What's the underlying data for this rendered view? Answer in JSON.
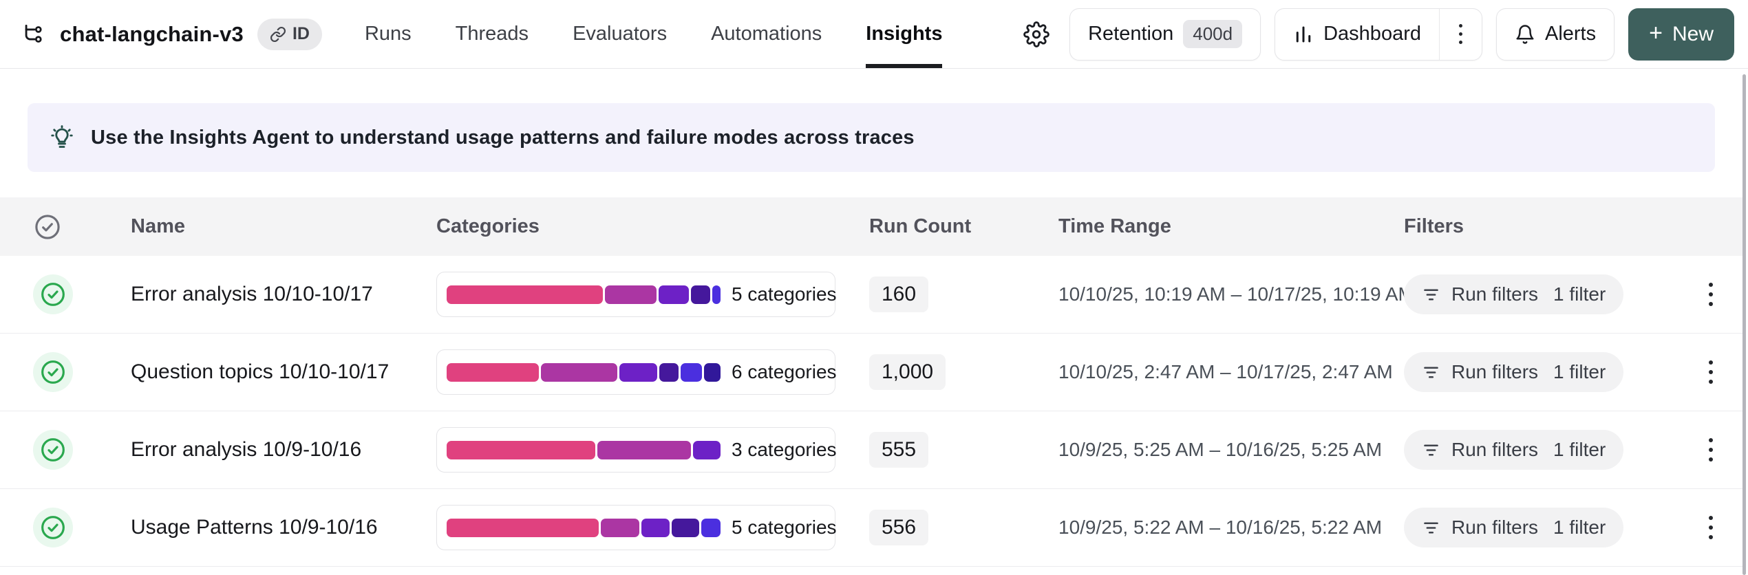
{
  "header": {
    "project_title": "chat-langchain-v3",
    "id_badge": "ID",
    "tabs": [
      {
        "label": "Runs",
        "active": false
      },
      {
        "label": "Threads",
        "active": false
      },
      {
        "label": "Evaluators",
        "active": false
      },
      {
        "label": "Automations",
        "active": false
      },
      {
        "label": "Insights",
        "active": true
      }
    ],
    "retention_label": "Retention",
    "retention_value": "400d",
    "dashboard_label": "Dashboard",
    "alerts_label": "Alerts",
    "new_plus": "+",
    "new_label": "New"
  },
  "banner": {
    "text": "Use the Insights Agent to understand usage patterns and failure modes across traces"
  },
  "table": {
    "columns": {
      "name": "Name",
      "categories": "Categories",
      "run_count": "Run Count",
      "time_range": "Time Range",
      "filters": "Filters"
    },
    "rows": [
      {
        "name": "Error analysis 10/10-10/17",
        "categories_label": "5 categories",
        "segments": [
          {
            "color": "#e0417f",
            "pct": 57
          },
          {
            "color": "#ab36a3",
            "pct": 19
          },
          {
            "color": "#6d21c6",
            "pct": 11
          },
          {
            "color": "#45189c",
            "pct": 7
          },
          {
            "color": "#4b2fdf",
            "pct": 3
          }
        ],
        "run_count": "160",
        "time_range": "10/10/25, 10:19 AM – 10/17/25, 10:19 AM",
        "filter_label": "Run filters",
        "filter_count": "1 filter"
      },
      {
        "name": "Question topics 10/10-10/17",
        "categories_label": "6 categories",
        "segments": [
          {
            "color": "#e0417f",
            "pct": 34
          },
          {
            "color": "#ab36a3",
            "pct": 28
          },
          {
            "color": "#6d21c6",
            "pct": 14
          },
          {
            "color": "#45189c",
            "pct": 7
          },
          {
            "color": "#4b2fdf",
            "pct": 8
          },
          {
            "color": "#31189a",
            "pct": 6
          }
        ],
        "run_count": "1,000",
        "time_range": "10/10/25, 2:47 AM – 10/17/25, 2:47 AM",
        "filter_label": "Run filters",
        "filter_count": "1 filter"
      },
      {
        "name": "Error analysis 10/9-10/16",
        "categories_label": "3 categories",
        "segments": [
          {
            "color": "#e0417f",
            "pct": 54
          },
          {
            "color": "#ab36a3",
            "pct": 34
          },
          {
            "color": "#6d21c6",
            "pct": 10
          }
        ],
        "run_count": "555",
        "time_range": "10/9/25, 5:25 AM – 10/16/25, 5:25 AM",
        "filter_label": "Run filters",
        "filter_count": "1 filter"
      },
      {
        "name": "Usage Patterns 10/9-10/16",
        "categories_label": "5 categories",
        "segments": [
          {
            "color": "#e0417f",
            "pct": 55
          },
          {
            "color": "#ab36a3",
            "pct": 14
          },
          {
            "color": "#6d21c6",
            "pct": 10
          },
          {
            "color": "#45189c",
            "pct": 10
          },
          {
            "color": "#4b2fdf",
            "pct": 7
          }
        ],
        "run_count": "556",
        "time_range": "10/9/25, 5:22 AM – 10/16/25, 5:22 AM",
        "filter_label": "Run filters",
        "filter_count": "1 filter"
      }
    ]
  },
  "colors": {
    "accent_new_button": "#3e605d",
    "banner_background": "#f3f2fc",
    "header_band": "#f4f4f5",
    "check_green": "#2aa84e",
    "segment_palette": [
      "#e0417f",
      "#ab36a3",
      "#6d21c6",
      "#45189c",
      "#4b2fdf",
      "#31189a"
    ]
  }
}
